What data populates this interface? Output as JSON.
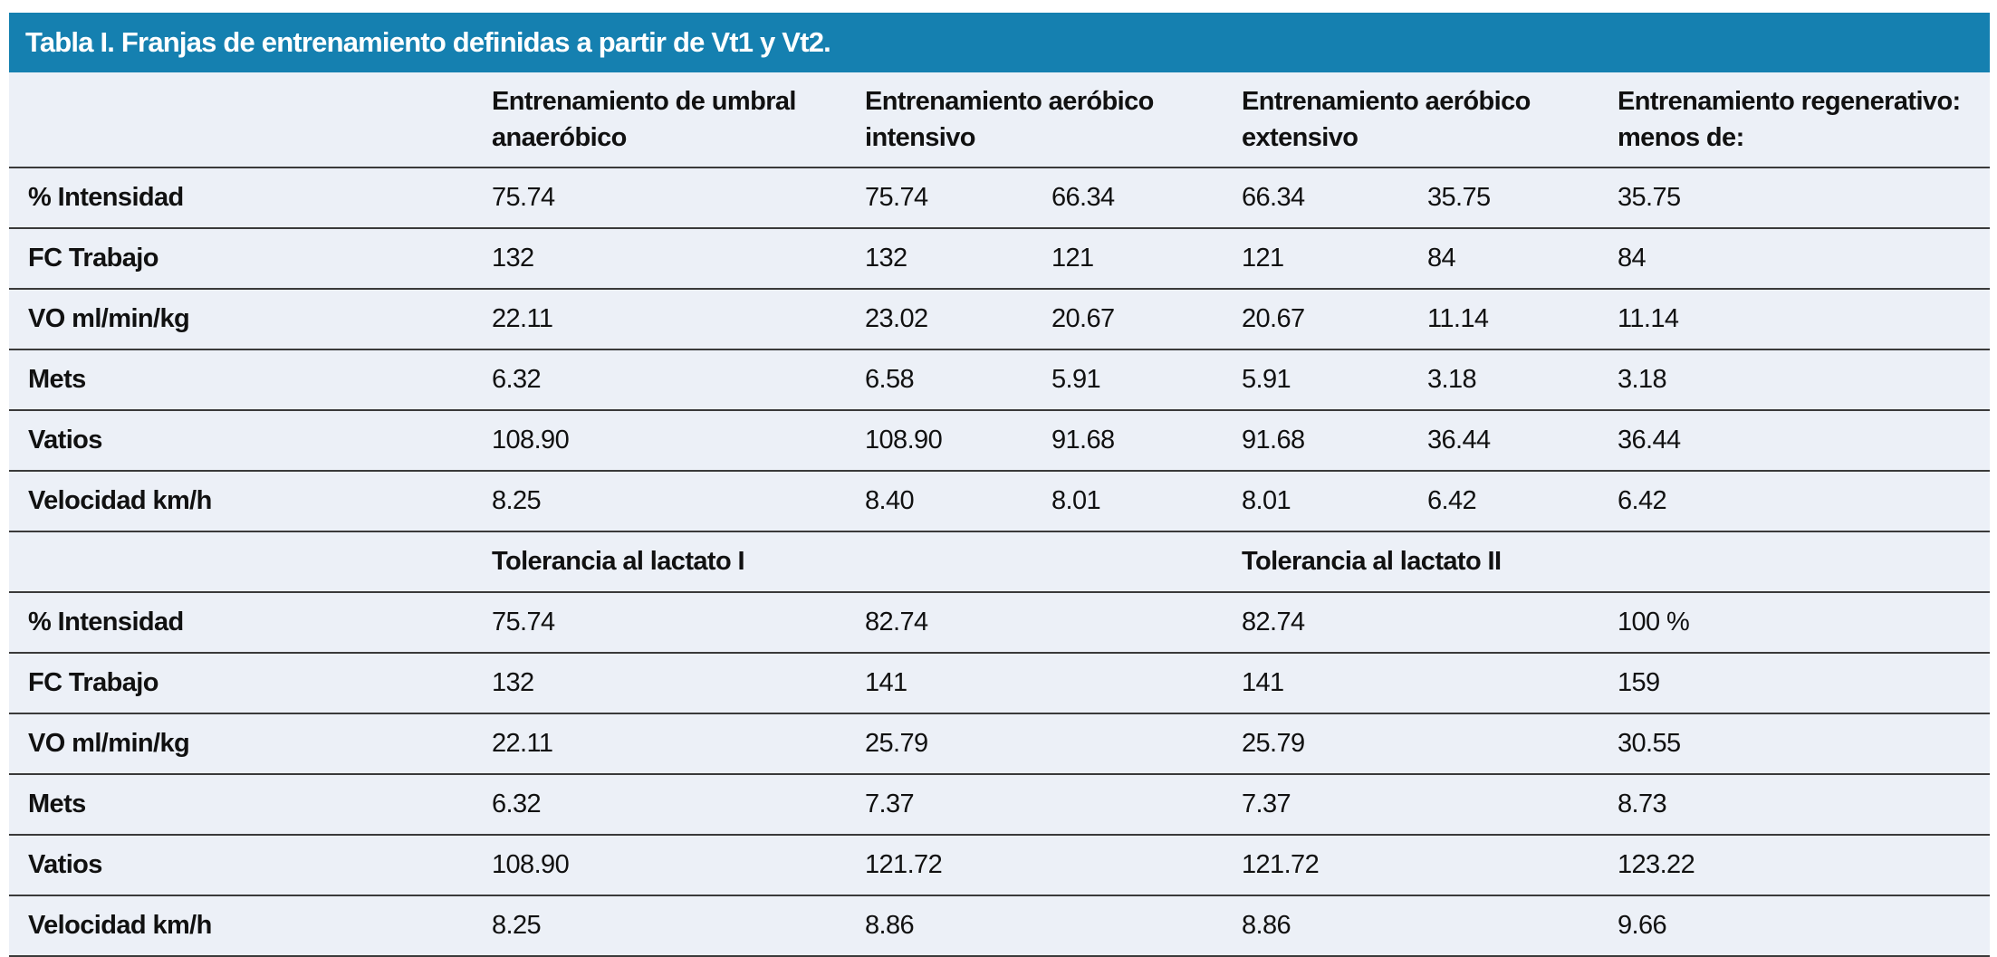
{
  "title": "Tabla I. Franjas de entrenamiento definidas a partir de Vt1 y Vt2.",
  "header": [
    "Entrenamiento de umbral anaeróbico",
    "Entrenamiento aeróbico intensivo",
    "Entrenamiento aeróbico extensivo",
    "Entrenamiento regenerativo: menos de:"
  ],
  "top_rows": [
    {
      "label": "% Intensidad",
      "values": [
        "75.74",
        "75.74",
        "66.34",
        "66.34",
        "35.75",
        "35.75"
      ]
    },
    {
      "label": "FC Trabajo",
      "values": [
        "132",
        "132",
        "121",
        "121",
        "84",
        "84"
      ]
    },
    {
      "label": "VO ml/min/kg",
      "values": [
        "22.11",
        "23.02",
        "20.67",
        "20.67",
        "11.14",
        "11.14"
      ]
    },
    {
      "label": "Mets",
      "values": [
        "6.32",
        "6.58",
        "5.91",
        "5.91",
        "3.18",
        "3.18"
      ]
    },
    {
      "label": "Vatios",
      "values": [
        "108.90",
        "108.90",
        "91.68",
        "91.68",
        "36.44",
        "36.44"
      ]
    },
    {
      "label": "Velocidad km/h",
      "values": [
        "8.25",
        "8.40",
        "8.01",
        "8.01",
        "6.42",
        "6.42"
      ]
    }
  ],
  "subheader": [
    "Tolerancia al lactato I",
    "Tolerancia al lactato II"
  ],
  "bottom_rows": [
    {
      "label": "% Intensidad",
      "values": [
        "75.74",
        "82.74",
        "82.74",
        "100 %"
      ]
    },
    {
      "label": "FC Trabajo",
      "values": [
        "132",
        "141",
        "141",
        "159"
      ]
    },
    {
      "label": "VO ml/min/kg",
      "values": [
        "22.11",
        "25.79",
        "25.79",
        "30.55"
      ]
    },
    {
      "label": "Mets",
      "values": [
        "6.32",
        "7.37",
        "7.37",
        "8.73"
      ]
    },
    {
      "label": "Vatios",
      "values": [
        "108.90",
        "121.72",
        "121.72",
        "123.22"
      ]
    },
    {
      "label": "Velocidad km/h",
      "values": [
        "8.25",
        "8.86",
        "8.86",
        "9.66"
      ]
    }
  ]
}
